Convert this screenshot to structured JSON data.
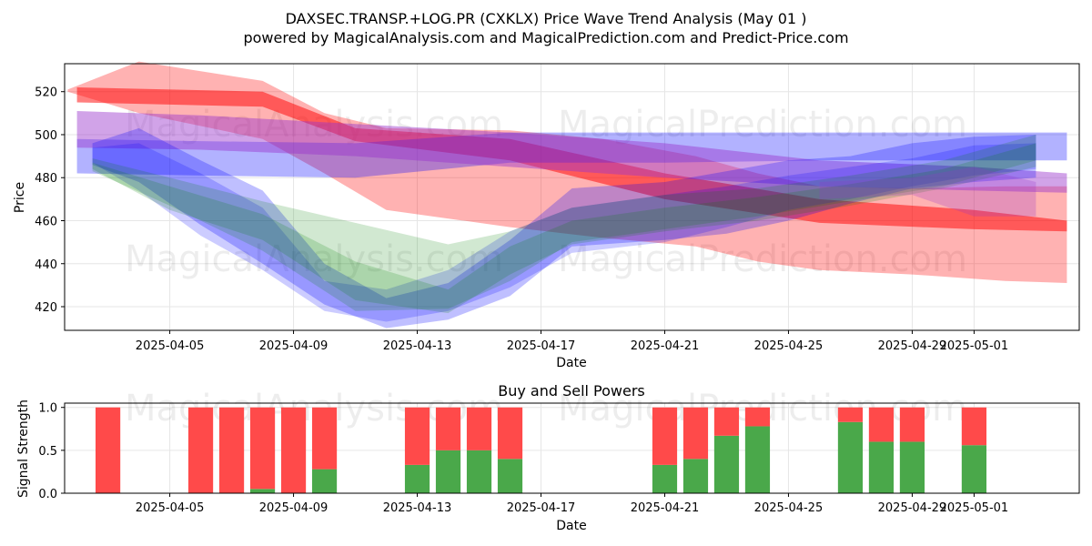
{
  "title_line1": "DAXSEC.TRANSP.+LOG.PR (CXKLX) Price Wave Trend Analysis (May 01 )",
  "title_line2": "powered by MagicalAnalysis.com and MagicalPrediction.com and Predict-Price.com",
  "watermarks": [
    "MagicalAnalysis.com",
    "MagicalPrediction.com"
  ],
  "colors": {
    "red": "#ff0000",
    "blue": "#0000ff",
    "green": "#008000",
    "purple": "#9932cc",
    "buy": "#4aa84a",
    "sell": "#ff4a4a",
    "grid": "#e6e6e6"
  },
  "chart_data": [
    {
      "type": "area",
      "xlabel": "Date",
      "ylabel": "Price",
      "x_ticks": [
        "2025-04-05",
        "2025-04-09",
        "2025-04-13",
        "2025-04-17",
        "2025-04-21",
        "2025-04-25",
        "2025-04-29",
        "2025-05-01"
      ],
      "x_tick_days": [
        4,
        8,
        12,
        16,
        20,
        24,
        28,
        30
      ],
      "y_ticks": [
        420,
        440,
        460,
        480,
        500,
        520
      ],
      "ylim": [
        409,
        533
      ],
      "xlim": [
        0.6,
        33.4
      ],
      "grid": true,
      "note": "x values are days counted from 2025-04-01",
      "bands": [
        {
          "color": "red",
          "opacity": 0.3,
          "x": [
            0.7,
            3,
            7,
            9,
            11,
            15,
            18,
            21,
            23,
            25,
            28,
            31,
            33
          ],
          "upper": [
            521,
            534,
            525,
            510,
            503,
            502,
            498,
            490,
            482,
            476,
            475,
            476,
            476
          ],
          "lower": [
            520,
            510,
            498,
            482,
            465,
            457,
            452,
            448,
            441,
            437,
            435,
            432,
            431
          ]
        },
        {
          "color": "red",
          "opacity": 0.5,
          "x": [
            1,
            7,
            10,
            15,
            20,
            25,
            30,
            33
          ],
          "upper": [
            522,
            520,
            503,
            498,
            482,
            470,
            465,
            460
          ],
          "lower": [
            515,
            513,
            497,
            488,
            470,
            459,
            456,
            455
          ]
        },
        {
          "color": "blue",
          "opacity": 0.3,
          "x": [
            1,
            5,
            10,
            15,
            20,
            25,
            30,
            33
          ],
          "upper": [
            498,
            497,
            496,
            501,
            501,
            501,
            501,
            501
          ],
          "lower": [
            482,
            481,
            480,
            487,
            487,
            488,
            488,
            488
          ]
        },
        {
          "color": "purple",
          "opacity": 0.45,
          "x": [
            1,
            5,
            10,
            15,
            20,
            25,
            30,
            33
          ],
          "upper": [
            511,
            509,
            505,
            501,
            496,
            488,
            485,
            482
          ],
          "lower": [
            494,
            493,
            490,
            485,
            480,
            476,
            474,
            473
          ]
        },
        {
          "color": "blue",
          "opacity": 0.25,
          "x": [
            1.5,
            3,
            5,
            7,
            9,
            11,
            13,
            15,
            17,
            20,
            22,
            24,
            26,
            28,
            30,
            32
          ],
          "upper": [
            496,
            503,
            488,
            474,
            440,
            424,
            431,
            451,
            475,
            478,
            483,
            488,
            490,
            496,
            499,
            500
          ],
          "lower": [
            486,
            478,
            458,
            440,
            421,
            410,
            414,
            425,
            448,
            451,
            454,
            460,
            468,
            475,
            478,
            480
          ]
        },
        {
          "color": "blue",
          "opacity": 0.2,
          "x": [
            1.5,
            3,
            5,
            7,
            9,
            11,
            13,
            15,
            17,
            20,
            22,
            24,
            26,
            28,
            30,
            32
          ],
          "upper": [
            494,
            496,
            482,
            466,
            432,
            428,
            437,
            455,
            466,
            472,
            476,
            481,
            485,
            489,
            495,
            496
          ],
          "lower": [
            487,
            474,
            453,
            437,
            418,
            413,
            418,
            429,
            445,
            450,
            457,
            465,
            470,
            476,
            481,
            484
          ]
        },
        {
          "color": "green",
          "opacity": 0.18,
          "x": [
            1.5,
            4,
            7,
            10,
            13,
            15,
            17,
            20,
            23,
            26,
            29,
            32
          ],
          "upper": [
            489,
            480,
            469,
            459,
            449,
            455,
            466,
            472,
            475,
            481,
            488,
            500
          ],
          "lower": [
            484,
            465,
            451,
            423,
            417,
            435,
            449,
            455,
            460,
            467,
            475,
            485
          ]
        },
        {
          "color": "green",
          "opacity": 0.18,
          "x": [
            1.5,
            4,
            7,
            10,
            13,
            15,
            17,
            20,
            23,
            26,
            29,
            32
          ],
          "upper": [
            487,
            476,
            463,
            441,
            428,
            448,
            460,
            466,
            471,
            477,
            484,
            496
          ],
          "lower": [
            483,
            467,
            446,
            418,
            419,
            432,
            450,
            456,
            462,
            469,
            476,
            488
          ]
        },
        {
          "color": "purple",
          "opacity": 0.25,
          "x": [
            25,
            28,
            30,
            32
          ],
          "upper": [
            478,
            480,
            485,
            478
          ],
          "lower": [
            470,
            472,
            462,
            462
          ]
        }
      ]
    },
    {
      "type": "bar",
      "title": "Buy and Sell Powers",
      "xlabel": "Date",
      "ylabel": "Signal Strength",
      "x_ticks": [
        "2025-04-05",
        "2025-04-09",
        "2025-04-13",
        "2025-04-17",
        "2025-04-21",
        "2025-04-25",
        "2025-04-29",
        "2025-05-01"
      ],
      "x_tick_days": [
        4,
        8,
        12,
        16,
        20,
        24,
        28,
        30
      ],
      "y_ticks": [
        "0.0",
        "0.5",
        "1.0"
      ],
      "ylim": [
        0,
        1.05
      ],
      "xlim": [
        0.6,
        33.4
      ],
      "series": [
        {
          "name": "buy",
          "values": [
            0,
            0,
            0,
            0.05,
            0,
            0.28,
            0.33,
            0.5,
            0.5,
            0.4,
            0.33,
            0.4,
            0.67,
            0.78,
            0.83,
            0.6,
            0.6,
            0.56
          ]
        },
        {
          "name": "sell",
          "values": [
            1,
            1,
            1,
            0.95,
            1,
            0.72,
            0.67,
            0.5,
            0.5,
            0.6,
            0.67,
            0.6,
            0.33,
            0.22,
            0.17,
            0.4,
            0.4,
            0.44
          ]
        }
      ],
      "days": [
        2,
        5,
        6,
        7,
        8,
        9,
        12,
        13,
        14,
        15,
        20,
        21,
        22,
        23,
        26,
        27,
        28,
        30
      ]
    }
  ]
}
